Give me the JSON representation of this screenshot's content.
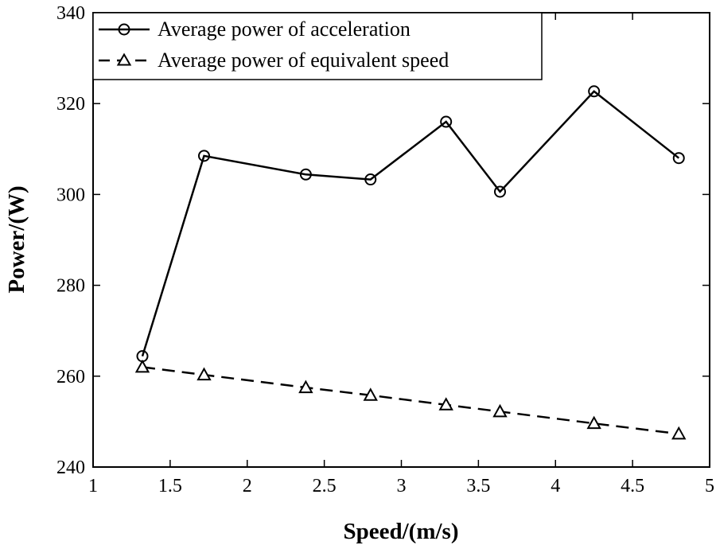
{
  "chart_data": {
    "type": "line",
    "title": "",
    "xlabel": "Speed/(m/s)",
    "ylabel": "Power/(W)",
    "xlim": [
      1,
      5
    ],
    "ylim": [
      240,
      340
    ],
    "xticks": [
      1,
      1.5,
      2,
      2.5,
      3,
      3.5,
      4,
      4.5,
      5
    ],
    "xtick_labels": [
      "1",
      "1.5",
      "2",
      "2.5",
      "3",
      "3.5",
      "4",
      "4.5",
      "5"
    ],
    "yticks": [
      240,
      260,
      280,
      300,
      320,
      340
    ],
    "ytick_labels": [
      "240",
      "260",
      "280",
      "300",
      "320",
      "340"
    ],
    "grid": false,
    "legend_position": "top-left",
    "series": [
      {
        "name": "Average power of acceleration",
        "line_style": "solid",
        "marker": "circle",
        "color": "#000000",
        "x": [
          1.32,
          1.72,
          2.38,
          2.8,
          3.29,
          3.64,
          4.25,
          4.8
        ],
        "y": [
          264.4,
          308.5,
          304.4,
          303.3,
          316.0,
          300.6,
          322.7,
          308.0
        ]
      },
      {
        "name": "Average power of equivalent speed",
        "line_style": "dashed",
        "marker": "triangle",
        "color": "#000000",
        "x": [
          1.32,
          1.72,
          2.38,
          2.8,
          3.29,
          3.64,
          4.25,
          4.8
        ],
        "y": [
          262.0,
          260.3,
          257.5,
          255.8,
          253.7,
          252.2,
          249.6,
          247.3
        ]
      }
    ]
  }
}
